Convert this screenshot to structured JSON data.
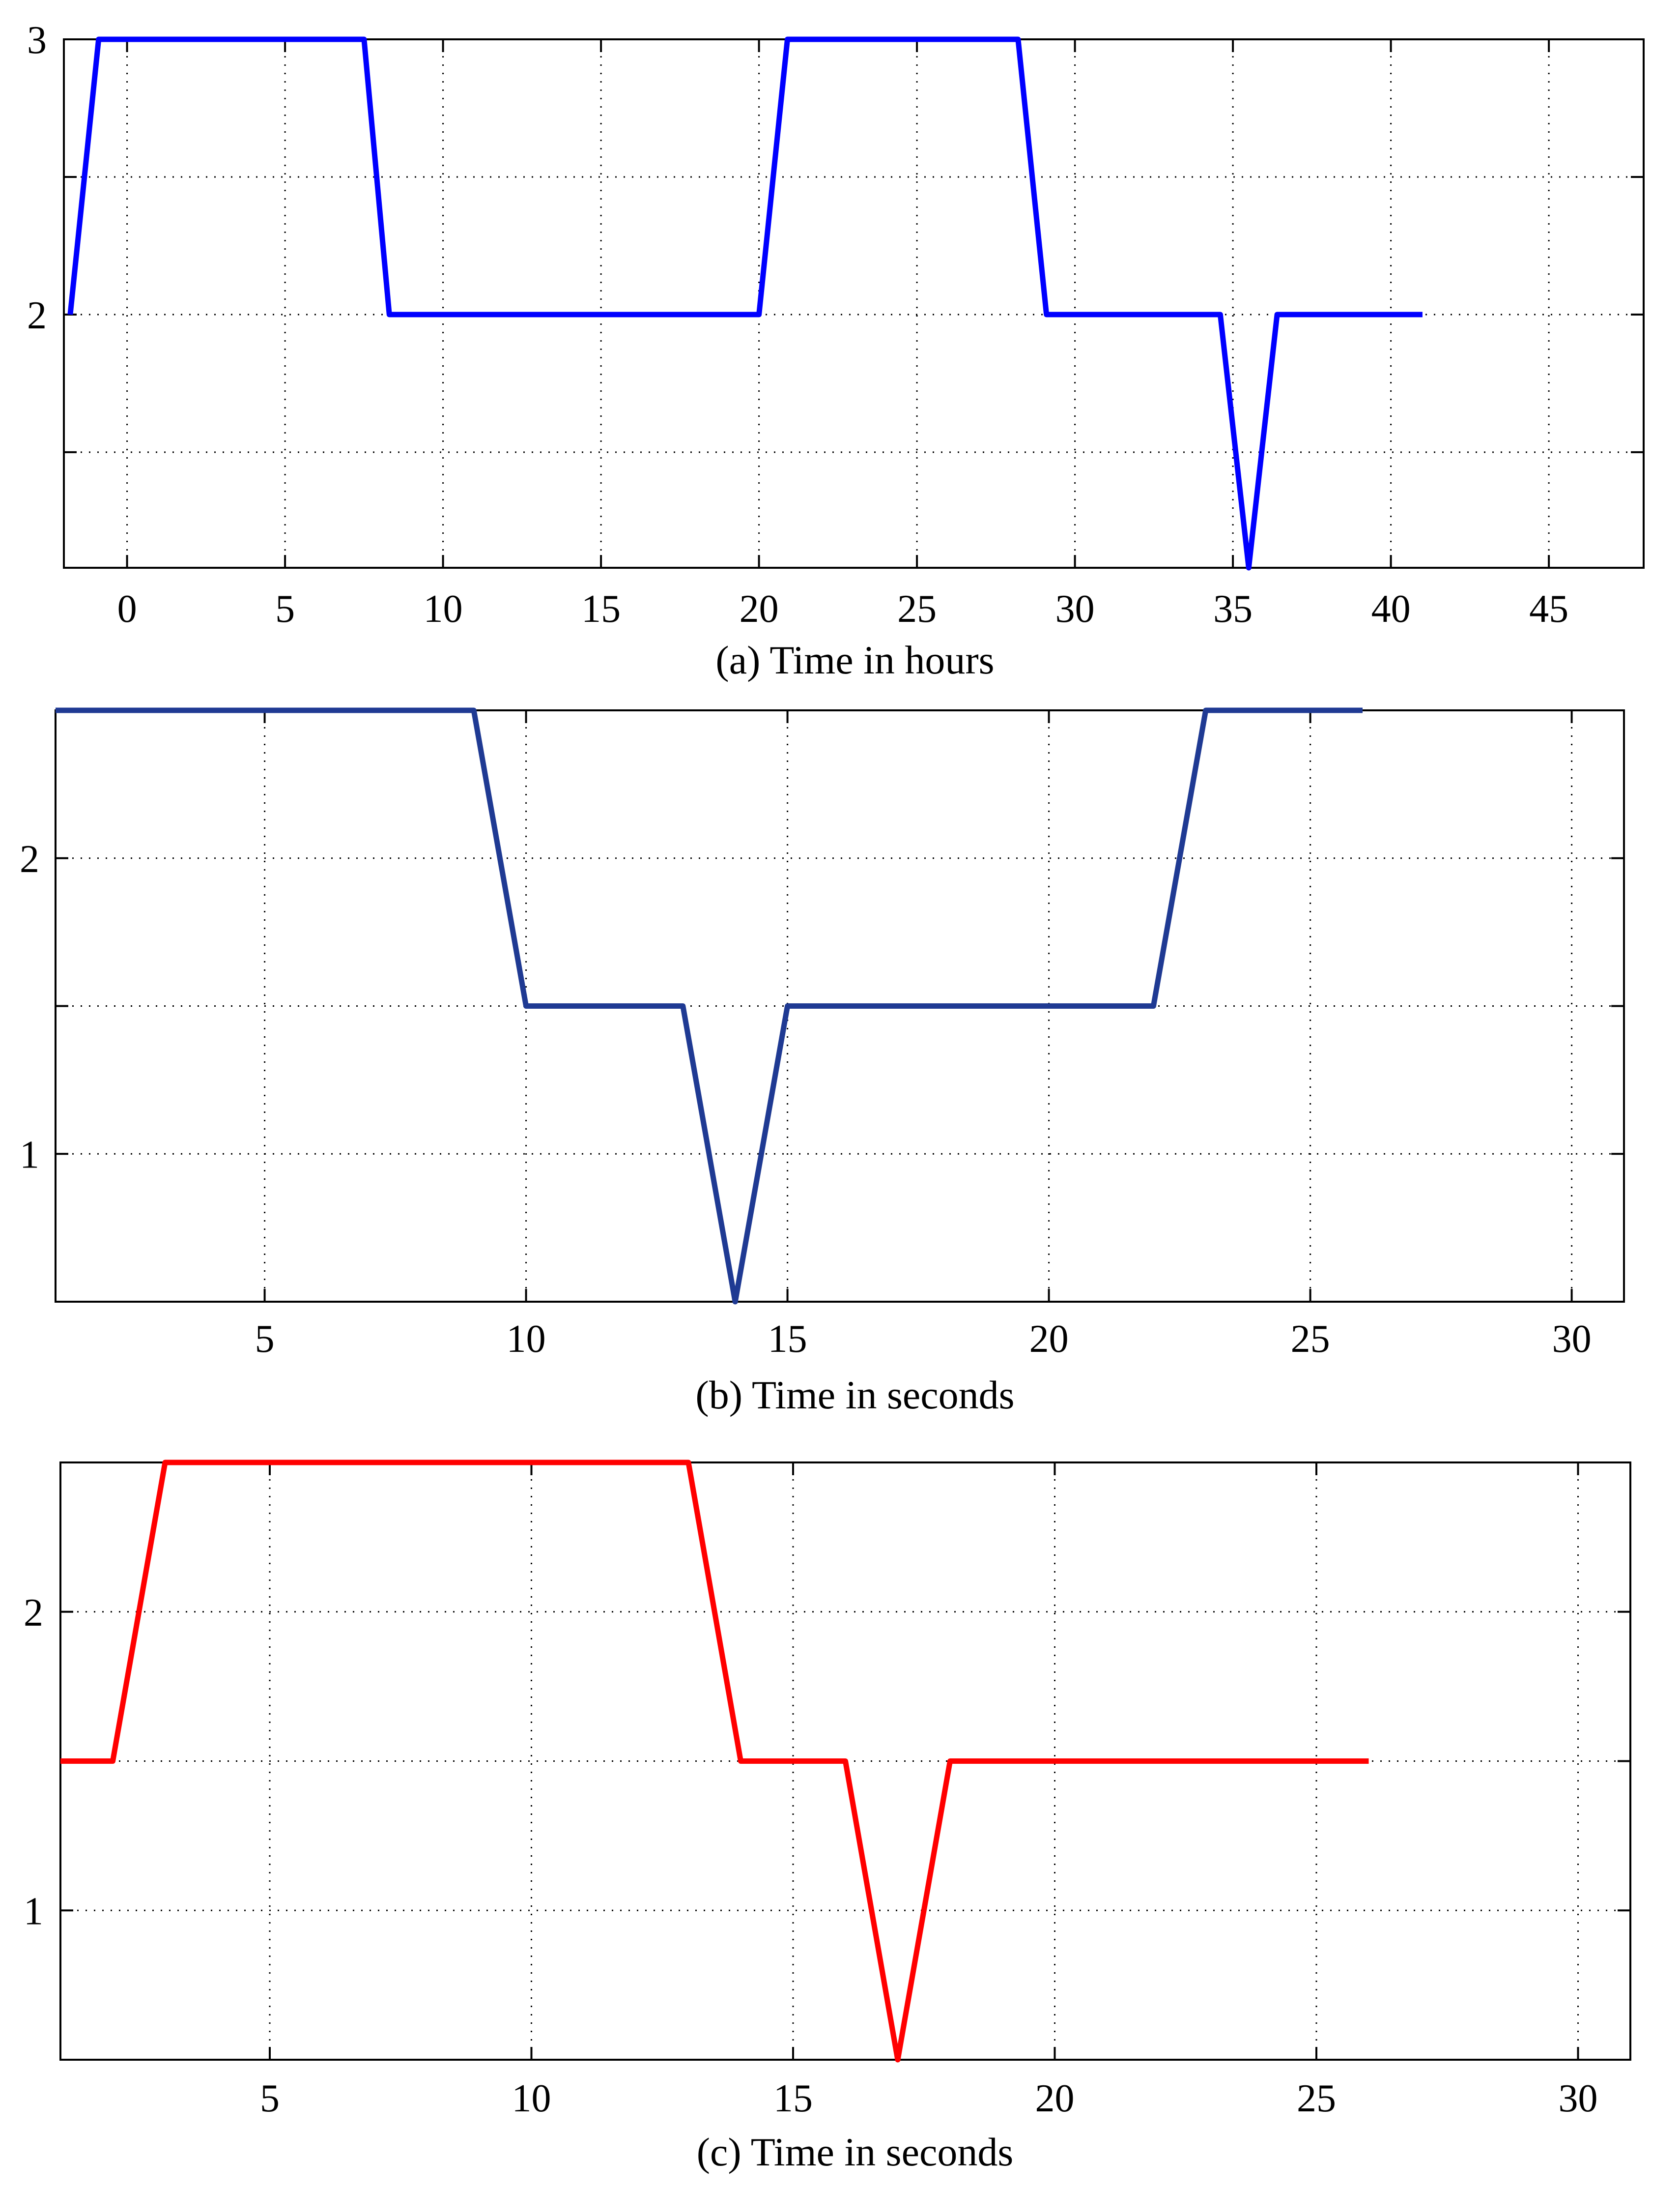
{
  "chart_data": [
    {
      "type": "line",
      "xlabel": "(a) Time in hours",
      "ylabel": "",
      "title": "",
      "xlim": [
        -2,
        48
      ],
      "ylim": [
        1.08,
        3.0
      ],
      "xticks": [
        0,
        5,
        10,
        15,
        20,
        25,
        30,
        35,
        40,
        45
      ],
      "yticks": [
        1.5,
        2,
        2.5,
        3
      ],
      "ytick_labels": [
        "",
        "2",
        "",
        "3"
      ],
      "grid": true,
      "line_color": "#0000FF",
      "series": [
        {
          "x": [
            -1.8,
            -0.9,
            7.5,
            8.3,
            20.0,
            20.9,
            28.2,
            29.1,
            34.6,
            35.5,
            36.4,
            41.0
          ],
          "y": [
            2,
            3,
            3,
            2,
            2,
            3,
            3,
            2,
            2,
            1.08,
            2,
            2
          ]
        }
      ]
    },
    {
      "type": "line",
      "xlabel": "(b) Time in seconds",
      "ylabel": "",
      "title": "",
      "xlim": [
        1,
        31
      ],
      "ylim": [
        0.5,
        2.5
      ],
      "xticks": [
        5,
        10,
        15,
        20,
        25,
        30
      ],
      "yticks": [
        1,
        1.5,
        2,
        2.5
      ],
      "ytick_labels": [
        "1",
        "",
        "2",
        ""
      ],
      "grid": true,
      "line_color": "#1F3A93",
      "series": [
        {
          "x": [
            1,
            9,
            10,
            13,
            14,
            15,
            22,
            23,
            26
          ],
          "y": [
            2.5,
            2.5,
            1.5,
            1.5,
            0.5,
            1.5,
            1.5,
            2.5,
            2.5
          ]
        }
      ]
    },
    {
      "type": "line",
      "xlabel": "(c) Time in seconds",
      "ylabel": "",
      "title": "",
      "xlim": [
        1,
        31
      ],
      "ylim": [
        0.5,
        2.5
      ],
      "xticks": [
        5,
        10,
        15,
        20,
        25,
        30
      ],
      "yticks": [
        1,
        1.5,
        2,
        2.5
      ],
      "ytick_labels": [
        "1",
        "",
        "2",
        ""
      ],
      "grid": true,
      "line_color": "#FF0000",
      "series": [
        {
          "x": [
            1,
            2,
            3,
            13,
            14,
            16,
            17,
            18,
            26
          ],
          "y": [
            1.5,
            1.5,
            2.5,
            2.5,
            1.5,
            1.5,
            0.5,
            1.5,
            1.5
          ]
        }
      ]
    }
  ]
}
